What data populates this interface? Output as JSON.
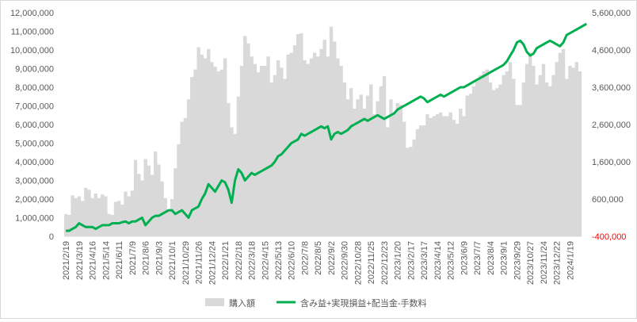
{
  "chart_data": {
    "type": "bar+line",
    "legend_position": "bottom",
    "grid": false,
    "y_left": {
      "min": 0,
      "max": 12000000,
      "ticks": [
        0,
        1000000,
        2000000,
        3000000,
        4000000,
        5000000,
        6000000,
        7000000,
        8000000,
        9000000,
        10000000,
        11000000,
        12000000
      ],
      "tick_labels": [
        "0",
        "1,000,000",
        "2,000,000",
        "3,000,000",
        "4,000,000",
        "5,000,000",
        "6,000,000",
        "7,000,000",
        "8,000,000",
        "9,000,000",
        "10,000,000",
        "11,000,000",
        "12,000,000"
      ]
    },
    "y_right": {
      "min": -400000,
      "max": 5600000,
      "ticks": [
        -400000,
        600000,
        1600000,
        2600000,
        3600000,
        4600000,
        5600000
      ],
      "tick_labels": [
        "-400,000",
        "600,000",
        "1,600,000",
        "2,600,000",
        "3,600,000",
        "4,600,000",
        "5,600,000"
      ],
      "negative_color": "#ff0000"
    },
    "x": {
      "n_points": 156,
      "tick_labels": [
        "2021/2/19",
        "2021/3/19",
        "2021/4/16",
        "2021/5/14",
        "2021/6/11",
        "2021/7/9",
        "2021/8/6",
        "2021/9/3",
        "2021/10/1",
        "2021/10/29",
        "2021/11/26",
        "2021/12/24",
        "2022/1/21",
        "2022/2/18",
        "2022/3/18",
        "2022/4/15",
        "2022/5/13",
        "2022/6/10",
        "2022/7/8",
        "2022/8/5",
        "2022/9/2",
        "2022/9/30",
        "2022/10/28",
        "2022/11/25",
        "2022/12/23",
        "2023/1/20",
        "2023/2/17",
        "2023/3/17",
        "2023/4/14",
        "2023/5/12",
        "2023/6/9",
        "2023/7/7",
        "2023/8/4",
        "2023/9/1",
        "2023/9/29",
        "2023/10/27",
        "2023/11/24",
        "2023/12/22",
        "2024/1/19"
      ]
    },
    "series": [
      {
        "name": "購入額",
        "type": "bar",
        "axis": "left",
        "color": "#d9d9d9",
        "values": [
          1200000,
          1150000,
          2200000,
          2050000,
          2150000,
          1900000,
          2600000,
          2500000,
          2050000,
          2300000,
          2050000,
          2250000,
          2150000,
          1200000,
          1150000,
          1850000,
          1900000,
          1700000,
          2400000,
          2150000,
          2450000,
          4100000,
          3350000,
          3000000,
          4150000,
          3800000,
          3300000,
          4550000,
          3850000,
          2950000,
          2050000,
          1350000,
          2000000,
          3650000,
          4950000,
          6150000,
          6350000,
          7350000,
          8550000,
          8950000,
          10150000,
          9750000,
          9550000,
          10050000,
          9350000,
          9100000,
          8850000,
          8950000,
          9550000,
          7150000,
          5850000,
          5500000,
          7500000,
          9150000,
          10750000,
          10350000,
          9650000,
          9250000,
          8800000,
          9150000,
          9150000,
          9650000,
          8250000,
          8650000,
          9450000,
          9050000,
          8450000,
          9750000,
          9850000,
          10250000,
          10850000,
          10900000,
          9450000,
          9250000,
          9550000,
          9850000,
          9650000,
          10050000,
          10550000,
          9650000,
          11250000,
          10450000,
          9550000,
          9150000,
          8250000,
          7350000,
          7950000,
          6850000,
          7350000,
          7600000,
          6850000,
          7550000,
          8150000,
          6550000,
          7250000,
          8050000,
          8600000,
          5850000,
          7350000,
          6650000,
          7150000,
          7050000,
          6150000,
          4750000,
          4800000,
          5200000,
          5750000,
          5950000,
          5950000,
          6550000,
          6350000,
          6450000,
          6550000,
          6650000,
          6450000,
          6450000,
          6650000,
          6250000,
          6050000,
          6850000,
          6450000,
          7550000,
          7650000,
          8050000,
          8450000,
          8650000,
          8850000,
          8950000,
          8250000,
          7850000,
          7950000,
          8150000,
          8650000,
          8850000,
          9350000,
          8450000,
          7050000,
          7050000,
          8250000,
          9250000,
          9850000,
          9150000,
          8150000,
          8650000,
          9250000,
          8250000,
          8050000,
          8650000,
          9350000,
          9850000,
          10050000,
          8450000,
          9150000,
          9050000,
          9350000,
          8850000
        ]
      },
      {
        "name": "含み益+実現損益+配当金-手数料",
        "type": "line",
        "axis": "right",
        "color": "#00b050",
        "values": [
          -250000,
          -250000,
          -200000,
          -150000,
          -50000,
          -100000,
          -150000,
          -150000,
          -150000,
          -200000,
          -150000,
          -100000,
          -100000,
          -100000,
          -50000,
          -50000,
          -50000,
          -20000,
          0,
          -50000,
          0,
          0,
          50000,
          100000,
          -100000,
          0,
          100000,
          150000,
          150000,
          200000,
          250000,
          300000,
          300000,
          200000,
          250000,
          300000,
          200000,
          100000,
          300000,
          350000,
          400000,
          600000,
          750000,
          1000000,
          900000,
          800000,
          950000,
          1100000,
          1050000,
          850000,
          500000,
          1100000,
          1400000,
          1300000,
          1100000,
          1200000,
          1300000,
          1250000,
          1300000,
          1350000,
          1400000,
          1450000,
          1500000,
          1600000,
          1750000,
          1800000,
          1900000,
          2000000,
          2100000,
          2150000,
          2200000,
          2350000,
          2300000,
          2350000,
          2400000,
          2450000,
          2500000,
          2550000,
          2500000,
          2550000,
          2200000,
          2350000,
          2400000,
          2350000,
          2400000,
          2450000,
          2550000,
          2600000,
          2650000,
          2700000,
          2750000,
          2700000,
          2750000,
          2800000,
          2850000,
          2800000,
          2750000,
          2800000,
          2850000,
          2900000,
          3000000,
          3050000,
          3100000,
          3150000,
          3200000,
          3250000,
          3300000,
          3350000,
          3300000,
          3200000,
          3250000,
          3300000,
          3350000,
          3400000,
          3350000,
          3400000,
          3450000,
          3500000,
          3550000,
          3600000,
          3600000,
          3650000,
          3700000,
          3750000,
          3800000,
          3850000,
          3900000,
          3950000,
          4000000,
          4050000,
          4100000,
          4150000,
          4200000,
          4300000,
          4450000,
          4600000,
          4800000,
          4850000,
          4750000,
          4550000,
          4450000,
          4500000,
          4650000,
          4700000,
          4750000,
          4800000,
          4850000,
          4800000,
          4750000,
          4700000,
          4800000,
          5000000,
          5050000,
          5100000,
          5150000,
          5200000,
          5250000,
          5300000
        ]
      }
    ]
  }
}
